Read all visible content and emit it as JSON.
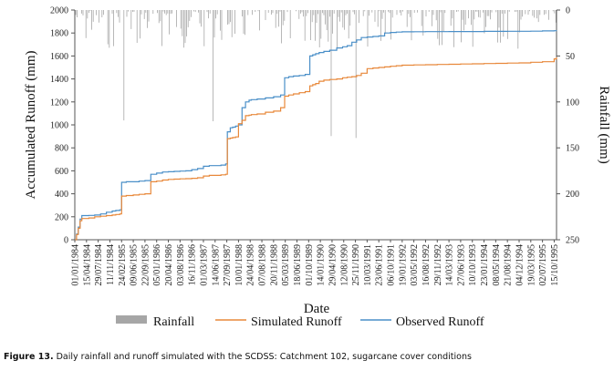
{
  "caption": {
    "label": "Figure 13.",
    "text": "Daily rainfall and runoff simulated with the SCDSS: Catchment 102, sugarcane cover conditions"
  },
  "chart_data": {
    "type": "line",
    "xlabel": "Date",
    "ylabel": "Accumulated Runoff (mm)",
    "y2label": "Rainfall (mm)",
    "ylim": [
      0,
      2000
    ],
    "y2lim": [
      0,
      250
    ],
    "y2_inverted": true,
    "yticks": [
      "0",
      "200",
      "400",
      "600",
      "800",
      "1000",
      "1200",
      "1400",
      "1600",
      "1800",
      "2000"
    ],
    "y2ticks": [
      "0",
      "50",
      "100",
      "150",
      "200",
      "250"
    ],
    "xticks": [
      "01/01/1984",
      "15/04/1984",
      "29/07/1984",
      "11/11/1984",
      "24/02/1985",
      "09/06/1985",
      "22/09/1985",
      "05/01/1986",
      "20/04/1986",
      "03/08/1986",
      "16/11/1986",
      "01/03/1987",
      "14/06/1987",
      "27/09/1987",
      "10/01/1988",
      "24/04/1988",
      "07/08/1988",
      "20/11/1988",
      "05/03/1989",
      "18/06/1989",
      "01/10/1989",
      "14/01/1990",
      "29/04/1990",
      "12/08/1990",
      "25/11/1990",
      "10/03/1991",
      "23/06/1991",
      "06/10/1991",
      "19/01/1992",
      "03/05/1992",
      "16/08/1992",
      "29/11/1992",
      "14/03/1993",
      "27/06/1993",
      "10/10/1993",
      "23/01/1994",
      "08/05/1994",
      "21/08/1994",
      "04/12/1994",
      "19/03/1995",
      "02/07/1995",
      "15/10/1995"
    ],
    "xrange": [
      0,
      41.2
    ],
    "legend": {
      "placement": "bottom",
      "entries": [
        "Rainfall",
        "Simulated Runoff",
        "Observed Runoff"
      ]
    },
    "colors": {
      "rainfall": "#a6a6a6",
      "simulated": "#e8883a",
      "observed": "#4a8fc8",
      "axis": "#555555"
    },
    "series": [
      {
        "name": "Observed Runoff",
        "x": [
          0,
          0.15,
          0.3,
          0.45,
          0.6,
          1.2,
          1.7,
          2.2,
          2.7,
          3.2,
          3.5,
          3.85,
          4,
          4.4,
          5,
          5.5,
          6,
          6.5,
          7,
          7.5,
          8,
          8.5,
          9,
          9.5,
          10,
          10.5,
          11,
          11.5,
          12,
          12.5,
          12.9,
          13.05,
          13.3,
          13.5,
          13.75,
          14,
          14.3,
          14.6,
          14.9,
          15.1,
          15.6,
          16.3,
          17,
          17.6,
          17.95,
          18.3,
          18.7,
          19.2,
          19.7,
          20.1,
          20.35,
          20.6,
          20.9,
          21.3,
          21.8,
          22.4,
          22.9,
          23.3,
          23.7,
          24.1,
          24.5,
          25,
          25.5,
          26,
          26.5,
          27,
          27.5,
          28,
          29,
          30,
          31,
          32,
          33,
          34,
          35,
          36,
          37,
          38,
          39,
          40,
          41,
          41.2
        ],
        "values": [
          0,
          50,
          110,
          180,
          210,
          212,
          215,
          225,
          240,
          250,
          255,
          260,
          500,
          505,
          505,
          510,
          515,
          570,
          580,
          590,
          592,
          595,
          598,
          600,
          610,
          620,
          640,
          645,
          645,
          650,
          660,
          940,
          975,
          980,
          990,
          1000,
          1150,
          1200,
          1215,
          1220,
          1225,
          1235,
          1245,
          1260,
          1410,
          1420,
          1425,
          1430,
          1440,
          1600,
          1610,
          1620,
          1630,
          1640,
          1650,
          1670,
          1680,
          1690,
          1720,
          1740,
          1760,
          1765,
          1770,
          1775,
          1800,
          1805,
          1808,
          1810,
          1811,
          1812,
          1812,
          1813,
          1813,
          1813,
          1814,
          1814,
          1815,
          1815,
          1816,
          1818,
          1820,
          1822
        ]
      },
      {
        "name": "Simulated Runoff",
        "x": [
          0,
          0.15,
          0.3,
          0.45,
          0.6,
          1.2,
          1.7,
          2.2,
          2.7,
          3.2,
          3.5,
          3.85,
          4,
          4.4,
          5,
          5.5,
          6,
          6.5,
          7,
          7.5,
          8,
          8.5,
          9,
          9.5,
          10,
          10.5,
          11,
          11.5,
          12,
          12.5,
          12.9,
          13.05,
          13.3,
          13.5,
          13.75,
          14,
          14.3,
          14.6,
          14.9,
          15.1,
          15.6,
          16.3,
          17,
          17.6,
          17.95,
          18.3,
          18.7,
          19.2,
          19.7,
          20.1,
          20.35,
          20.6,
          20.9,
          21.3,
          21.8,
          22.4,
          22.9,
          23.3,
          23.7,
          24.1,
          24.5,
          25,
          25.5,
          26,
          26.5,
          27,
          27.5,
          28,
          29,
          30,
          31,
          32,
          33,
          34,
          35,
          36,
          37,
          38,
          39,
          40,
          41,
          41.2
        ],
        "values": [
          0,
          45,
          100,
          165,
          185,
          190,
          200,
          205,
          210,
          215,
          220,
          225,
          380,
          385,
          390,
          395,
          400,
          505,
          510,
          520,
          525,
          528,
          530,
          532,
          535,
          540,
          555,
          560,
          560,
          565,
          570,
          880,
          885,
          890,
          895,
          1010,
          1040,
          1080,
          1085,
          1090,
          1095,
          1110,
          1120,
          1150,
          1250,
          1260,
          1270,
          1280,
          1290,
          1340,
          1350,
          1360,
          1380,
          1390,
          1395,
          1400,
          1410,
          1415,
          1420,
          1430,
          1450,
          1490,
          1495,
          1500,
          1505,
          1510,
          1515,
          1520,
          1522,
          1524,
          1526,
          1528,
          1530,
          1532,
          1534,
          1536,
          1538,
          1540,
          1545,
          1550,
          1575,
          1590
        ]
      }
    ]
  }
}
